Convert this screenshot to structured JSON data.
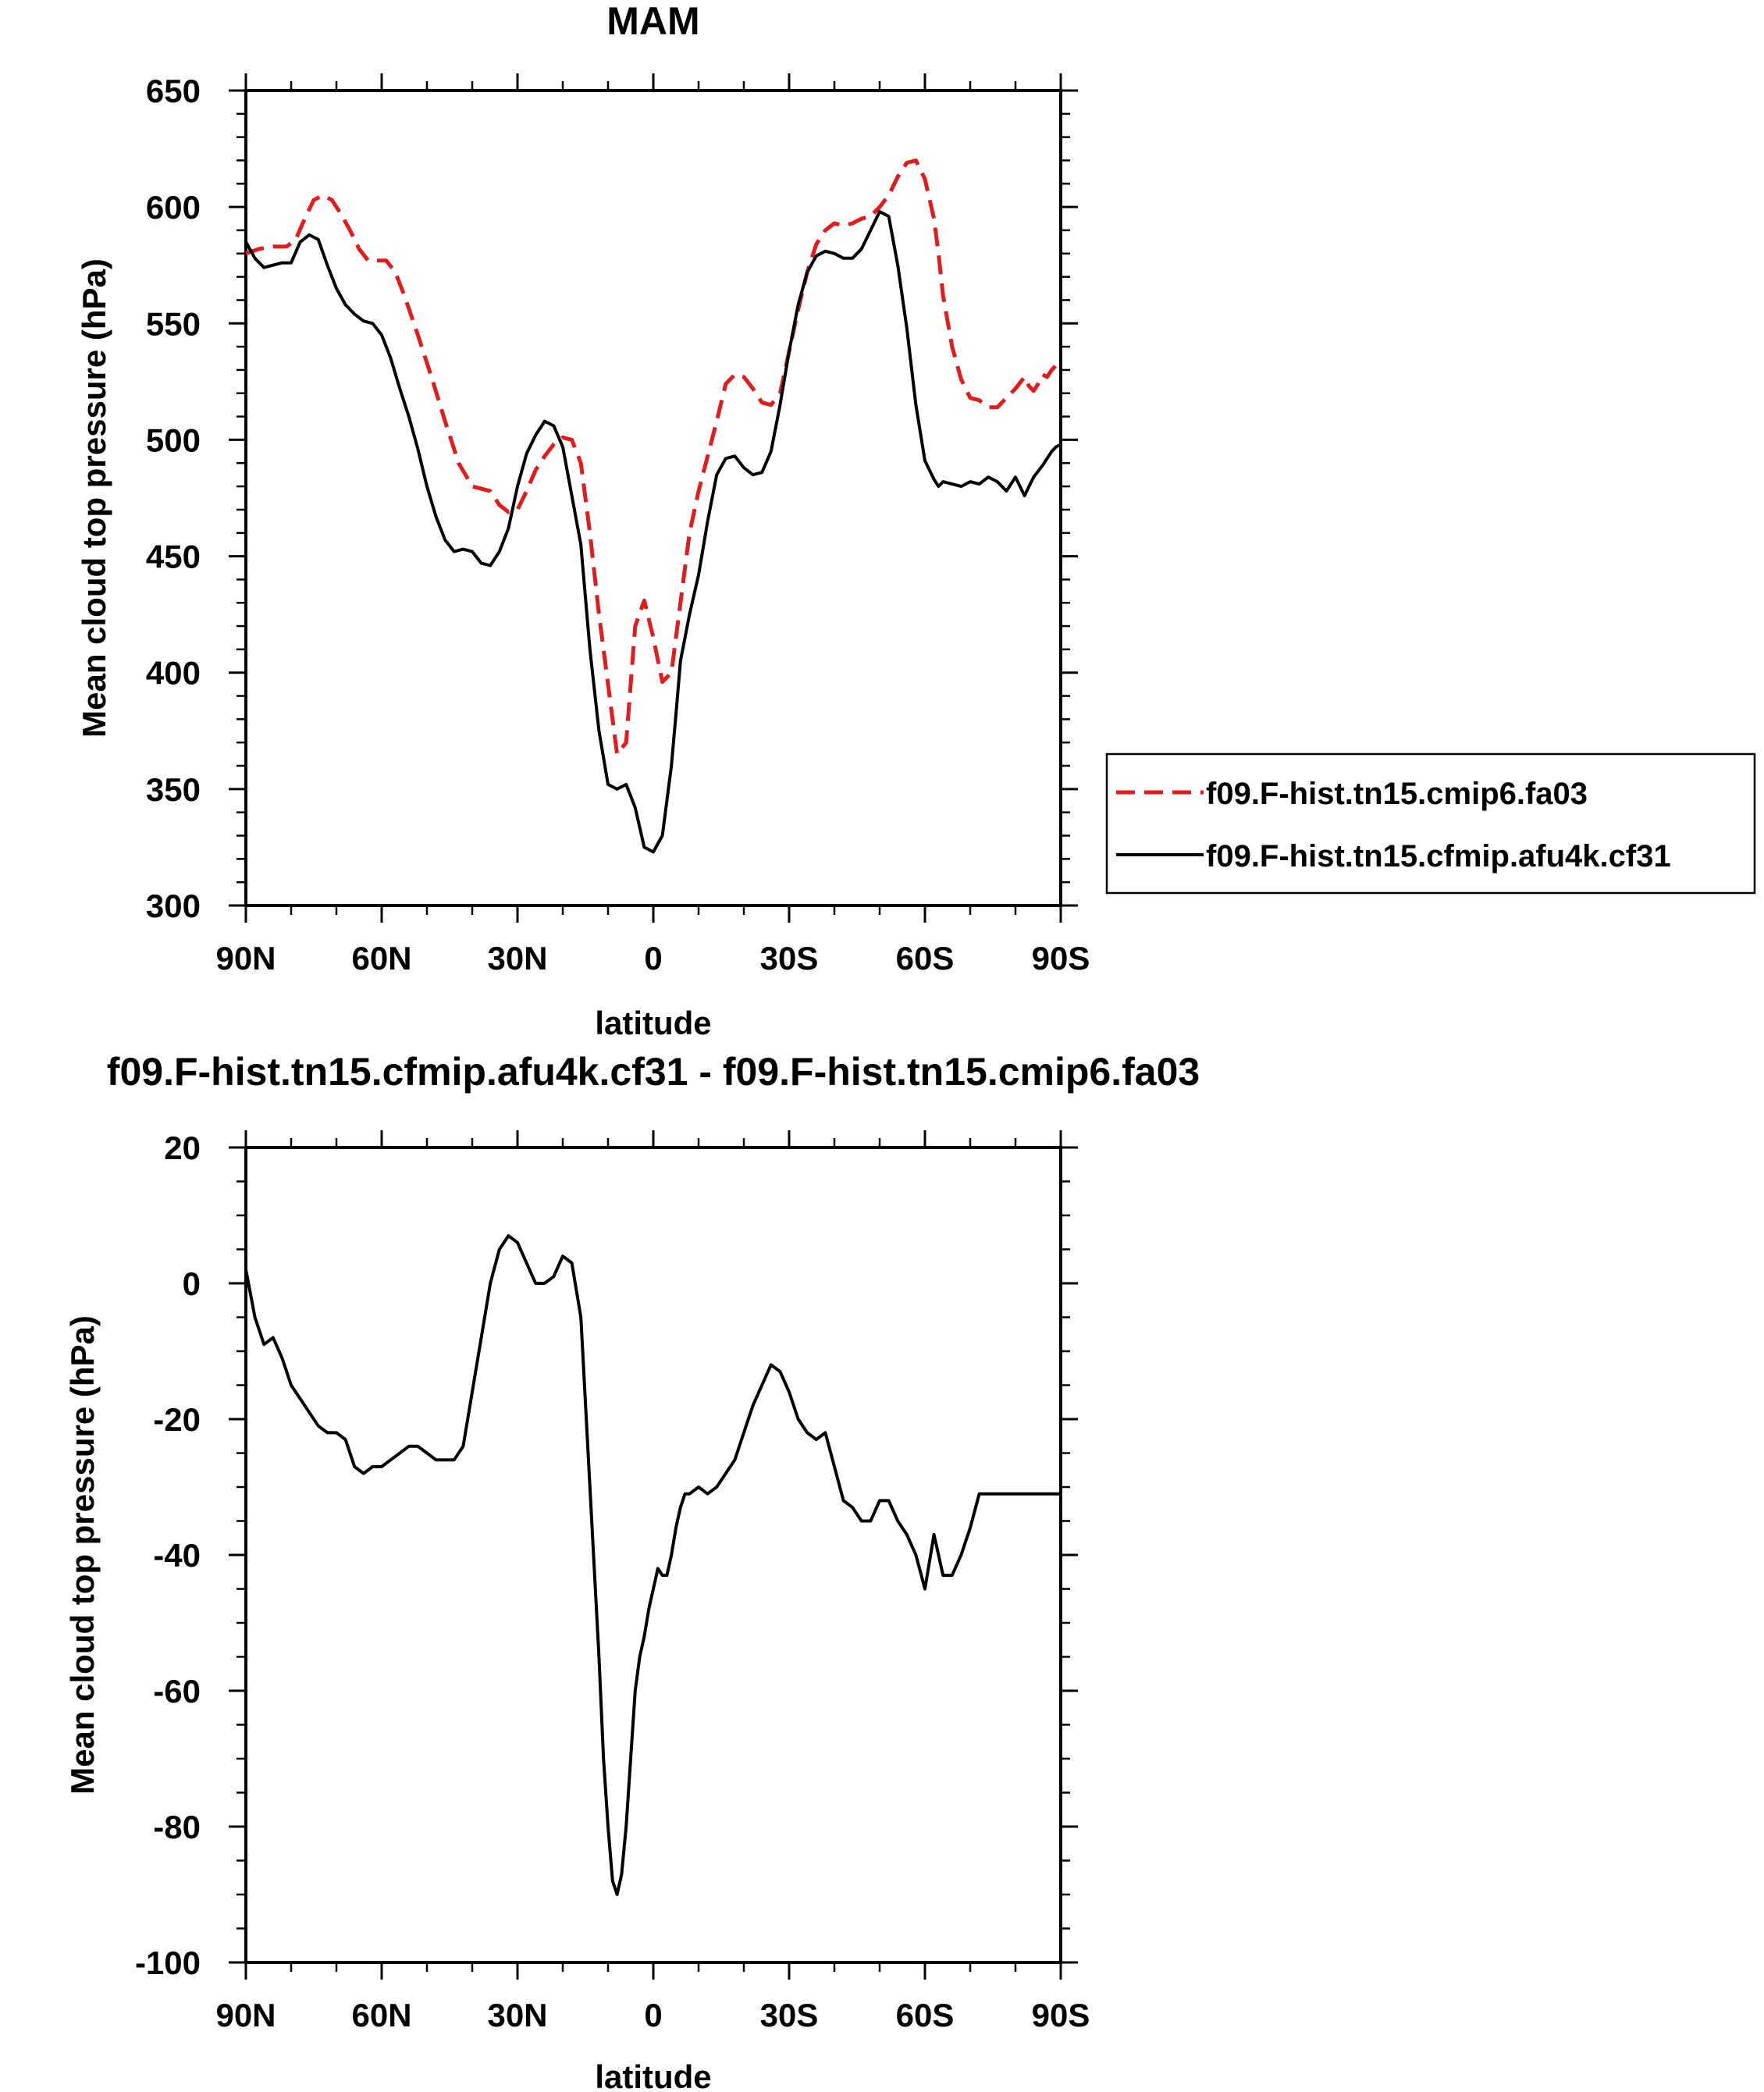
{
  "chart_data": [
    {
      "type": "line",
      "title": "MAM",
      "xlabel": "latitude",
      "ylabel": "Mean cloud top pressure (hPa)",
      "xlim": [
        90,
        -90
      ],
      "ylim": [
        300,
        650
      ],
      "xticks": [
        {
          "value": 90,
          "label": "90N"
        },
        {
          "value": 60,
          "label": "60N"
        },
        {
          "value": 30,
          "label": "30N"
        },
        {
          "value": 0,
          "label": "0"
        },
        {
          "value": -30,
          "label": "30S"
        },
        {
          "value": -60,
          "label": "60S"
        },
        {
          "value": -90,
          "label": "90S"
        }
      ],
      "yticks": [
        300,
        350,
        400,
        450,
        500,
        550,
        600,
        650
      ],
      "grid": false,
      "legend_position": "right",
      "series": [
        {
          "name": "f09.F-hist.tn15.cmip6.fa03",
          "color": "#e41a1c",
          "style": "dashed",
          "x": [
            90,
            87,
            84,
            81,
            79,
            77,
            75,
            73,
            71,
            69,
            67,
            65,
            63,
            61,
            59,
            57,
            55,
            52,
            49,
            46,
            43,
            40,
            38,
            36,
            34,
            32,
            30,
            28,
            26,
            24,
            22,
            20,
            18,
            16,
            14,
            12,
            10,
            8,
            6,
            4,
            2,
            0,
            -2,
            -4,
            -6,
            -8,
            -10,
            -12,
            -14,
            -16,
            -18,
            -20,
            -22,
            -24,
            -26,
            -28,
            -30,
            -32,
            -34,
            -36,
            -38,
            -40,
            -42,
            -44,
            -46,
            -48,
            -50,
            -52,
            -54,
            -56,
            -58,
            -60,
            -62,
            -63,
            -64,
            -66,
            -68,
            -70,
            -72,
            -74,
            -76,
            -78,
            -80,
            -82,
            -83,
            -84,
            -85,
            -86,
            -87,
            -88,
            -89,
            -90
          ],
          "y": [
            580,
            582,
            583,
            583,
            586,
            595,
            603,
            605,
            603,
            597,
            590,
            582,
            577,
            577,
            577,
            572,
            562,
            545,
            527,
            508,
            490,
            480,
            479,
            478,
            472,
            469,
            470,
            478,
            487,
            493,
            498,
            501,
            500,
            490,
            460,
            425,
            395,
            365,
            370,
            420,
            431,
            415,
            396,
            400,
            430,
            460,
            478,
            493,
            508,
            524,
            528,
            527,
            522,
            516,
            515,
            520,
            538,
            556,
            572,
            584,
            590,
            593,
            592,
            593,
            595,
            596,
            600,
            605,
            613,
            619,
            620,
            612,
            595,
            580,
            562,
            540,
            526,
            518,
            517,
            514,
            514,
            518,
            522,
            527,
            523,
            521,
            524,
            528,
            527,
            530,
            532,
            535
          ]
        },
        {
          "name": "f09.F-hist.tn15.cfmip.afu4k.cf31",
          "color": "#000000",
          "style": "solid",
          "x": [
            90,
            88,
            86,
            84,
            82,
            80,
            78,
            76,
            74,
            72,
            70,
            68,
            66,
            64,
            62,
            60,
            58,
            56,
            54,
            52,
            50,
            48,
            46,
            44,
            42,
            40,
            38,
            36,
            34,
            32,
            30,
            28,
            26,
            24,
            22,
            20,
            18,
            16,
            14,
            12,
            10,
            8,
            6,
            4,
            2,
            0,
            -2,
            -4,
            -5,
            -6,
            -8,
            -10,
            -12,
            -14,
            -16,
            -18,
            -20,
            -22,
            -24,
            -26,
            -28,
            -30,
            -32,
            -34,
            -36,
            -38,
            -40,
            -42,
            -44,
            -46,
            -48,
            -50,
            -52,
            -54,
            -56,
            -58,
            -60,
            -62,
            -63,
            -64,
            -66,
            -68,
            -70,
            -72,
            -74,
            -76,
            -78,
            -80,
            -82,
            -84,
            -86,
            -88,
            -89,
            -90
          ],
          "y": [
            585,
            578,
            574,
            575,
            576,
            576,
            585,
            588,
            586,
            575,
            565,
            558,
            554,
            551,
            550,
            545,
            535,
            522,
            510,
            496,
            480,
            467,
            457,
            452,
            453,
            452,
            447,
            446,
            452,
            462,
            480,
            494,
            502,
            508,
            506,
            497,
            476,
            455,
            410,
            375,
            352,
            350,
            352,
            342,
            325,
            323,
            330,
            360,
            382,
            405,
            425,
            442,
            465,
            485,
            492,
            493,
            488,
            485,
            486,
            495,
            515,
            538,
            558,
            572,
            579,
            581,
            580,
            578,
            578,
            582,
            590,
            598,
            596,
            575,
            548,
            515,
            491,
            483,
            480,
            482,
            481,
            480,
            482,
            481,
            484,
            482,
            478,
            484,
            476,
            484,
            489,
            495,
            497,
            498
          ]
        }
      ]
    },
    {
      "type": "line",
      "title": "f09.F-hist.tn15.cfmip.afu4k.cf31 - f09.F-hist.tn15.cmip6.fa03",
      "xlabel": "latitude",
      "ylabel": "Mean cloud top pressure (hPa)",
      "xlim": [
        90,
        -90
      ],
      "ylim": [
        -100,
        20
      ],
      "xticks": [
        {
          "value": 90,
          "label": "90N"
        },
        {
          "value": 60,
          "label": "60N"
        },
        {
          "value": 30,
          "label": "30N"
        },
        {
          "value": 0,
          "label": "0"
        },
        {
          "value": -30,
          "label": "30S"
        },
        {
          "value": -60,
          "label": "60S"
        },
        {
          "value": -90,
          "label": "90S"
        }
      ],
      "yticks": [
        -100,
        -80,
        -60,
        -40,
        -20,
        0,
        20
      ],
      "grid": false,
      "series": [
        {
          "name": "",
          "color": "#000000",
          "style": "solid",
          "x": [
            90,
            88,
            86,
            84,
            82,
            80,
            78,
            76,
            74,
            72,
            70,
            68,
            66,
            64,
            62,
            60,
            58,
            56,
            54,
            52,
            50,
            48,
            46,
            44,
            42,
            40,
            38,
            36,
            34,
            32,
            30,
            28,
            26,
            24,
            22,
            20,
            18,
            16,
            14,
            12,
            11,
            10,
            9,
            8,
            7,
            6,
            5,
            4,
            3,
            2,
            1,
            0,
            -1,
            -2,
            -3,
            -4,
            -5,
            -6,
            -7,
            -8,
            -10,
            -12,
            -14,
            -16,
            -18,
            -20,
            -22,
            -24,
            -26,
            -28,
            -30,
            -32,
            -34,
            -36,
            -38,
            -40,
            -42,
            -44,
            -46,
            -48,
            -50,
            -52,
            -54,
            -56,
            -58,
            -60,
            -62,
            -64,
            -66,
            -68,
            -70,
            -72,
            -74,
            -76,
            -78,
            -80,
            -82,
            -84,
            -85,
            -86,
            -87,
            -88,
            -89,
            -90
          ],
          "y": [
            2,
            -5,
            -9,
            -8,
            -11,
            -15,
            -17,
            -19,
            -21,
            -22,
            -22,
            -23,
            -27,
            -28,
            -27,
            -27,
            -26,
            -25,
            -24,
            -24,
            -25,
            -26,
            -26,
            -26,
            -24,
            -16,
            -8,
            0,
            5,
            7,
            6,
            3,
            0,
            0,
            1,
            4,
            3,
            -5,
            -30,
            -55,
            -70,
            -80,
            -88,
            -90,
            -87,
            -80,
            -70,
            -60,
            -55,
            -52,
            -48,
            -45,
            -42,
            -43,
            -43,
            -40,
            -36,
            -33,
            -31,
            -31,
            -30,
            -31,
            -30,
            -28,
            -26,
            -22,
            -18,
            -15,
            -12,
            -13,
            -16,
            -20,
            -22,
            -23,
            -22,
            -27,
            -32,
            -33,
            -35,
            -35,
            -32,
            -32,
            -35,
            -37,
            -40,
            -45,
            -37,
            -43,
            -43,
            -40,
            -36,
            -31,
            -31,
            -31,
            -31,
            -31,
            -31,
            -31,
            -31,
            -31,
            -31,
            -31,
            -31,
            -31
          ]
        }
      ]
    }
  ]
}
